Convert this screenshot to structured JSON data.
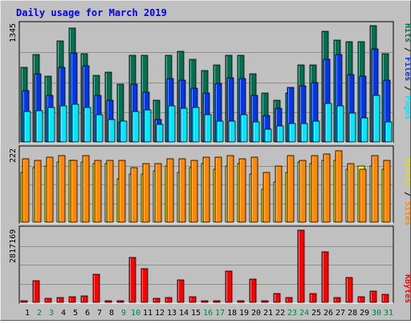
{
  "chart_data": {
    "type": "bar",
    "title": "Daily usage for March 2019",
    "days": [
      "1",
      "2",
      "3",
      "4",
      "5",
      "6",
      "7",
      "8",
      "9",
      "10",
      "11",
      "12",
      "13",
      "14",
      "15",
      "16",
      "17",
      "18",
      "19",
      "20",
      "21",
      "22",
      "23",
      "24",
      "25",
      "26",
      "27",
      "28",
      "29",
      "30",
      "31"
    ],
    "weekend_days": [
      "2",
      "3",
      "9",
      "10",
      "16",
      "17",
      "23",
      "24",
      "30",
      "31"
    ],
    "panels": [
      {
        "id": "hits_panel",
        "max_label": "1345",
        "ymax": 1345,
        "series": [
          {
            "name": "Hits",
            "color": "#007050",
            "values": [
              850,
              1000,
              750,
              1150,
              1300,
              1010,
              760,
              795,
              660,
              985,
              985,
              480,
              985,
              1035,
              940,
              815,
              875,
              985,
              985,
              775,
              560,
              480,
              560,
              880,
              880,
              1265,
              1165,
              1140,
              1140,
              1330,
              1010
            ]
          },
          {
            "name": "Files",
            "color": "#0038e8",
            "values": [
              590,
              775,
              530,
              850,
              1020,
              865,
              530,
              480,
              230,
              655,
              565,
              260,
              720,
              700,
              610,
              560,
              670,
              735,
              720,
              530,
              305,
              380,
              625,
              640,
              680,
              940,
              1000,
              765,
              750,
              1065,
              700
            ]
          },
          {
            "name": "Pages",
            "color": "#00e8ff",
            "values": [
              350,
              360,
              390,
              410,
              430,
              395,
              310,
              260,
              240,
              350,
              370,
              205,
              410,
              380,
              390,
              310,
              240,
              240,
              310,
              230,
              150,
              180,
              210,
              210,
              240,
              440,
              410,
              330,
              270,
              530,
              230
            ]
          }
        ],
        "legend": [
          "Pages",
          "Files",
          "Hits"
        ]
      },
      {
        "id": "sites_panel",
        "max_label": "222",
        "ymax": 222,
        "series": [
          {
            "name": "Visits",
            "color": "#ffff00",
            "values": [
              150,
              165,
              170,
              180,
              185,
              180,
              175,
              175,
              130,
              145,
              145,
              155,
              170,
              150,
              165,
              175,
              160,
              170,
              175,
              145,
              100,
              120,
              150,
              180,
              175,
              185,
              185,
              160,
              170,
              170,
              160
            ]
          },
          {
            "name": "Sites",
            "color": "#ff8800",
            "values": [
              190,
              185,
              195,
              200,
              185,
              200,
              185,
              185,
              185,
              165,
              175,
              175,
              190,
              190,
              185,
              195,
              195,
              200,
              190,
              195,
              150,
              170,
              200,
              185,
              200,
              205,
              215,
              175,
              160,
              200,
              185
            ]
          }
        ],
        "legend": [
          "Sites",
          "Visits"
        ]
      },
      {
        "id": "kbytes_panel",
        "max_label": "2817169",
        "ymax": 2817169,
        "series": [
          {
            "name": "KBytes",
            "color": "#ff0000",
            "values": [
              60000,
              820000,
              160000,
              190000,
              220000,
              230000,
              1080000,
              70000,
              70000,
              1700000,
              1290000,
              160000,
              170000,
              870000,
              210000,
              60000,
              70000,
              1200000,
              60000,
              900000,
              60000,
              330000,
              170000,
              2770000,
              330000,
              1920000,
              170000,
              960000,
              210000,
              420000,
              320000
            ]
          }
        ],
        "legend": [
          "KBytes"
        ]
      }
    ],
    "colors": {
      "background": "#c0c0c0",
      "title": "#0000ff",
      "weekday_label": "#000000",
      "weekend_label": "#008040",
      "legend_separator": "#000000"
    }
  }
}
